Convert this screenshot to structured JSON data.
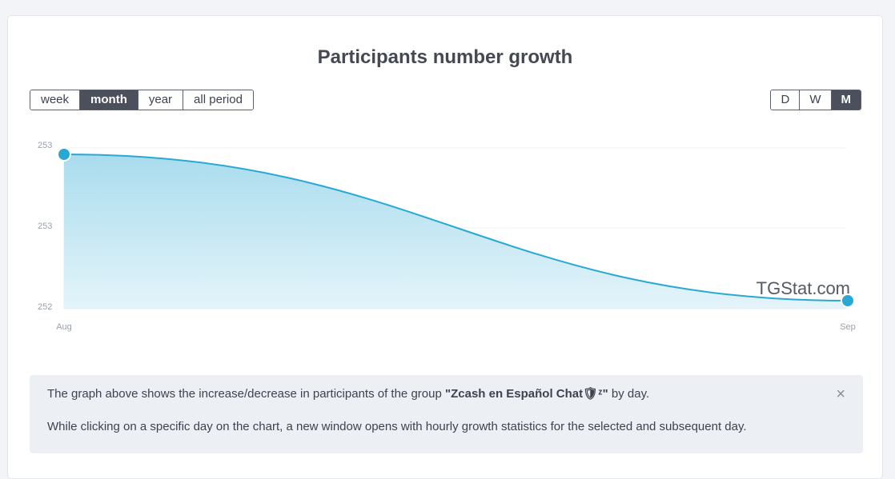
{
  "title": "Participants number growth",
  "period_buttons": [
    {
      "label": "week",
      "active": false
    },
    {
      "label": "month",
      "active": true
    },
    {
      "label": "year",
      "active": false
    },
    {
      "label": "all period",
      "active": false
    }
  ],
  "scale_buttons": [
    {
      "label": "D",
      "active": false
    },
    {
      "label": "W",
      "active": false
    },
    {
      "label": "M",
      "active": true
    }
  ],
  "chart_data": {
    "type": "area",
    "title": "Participants number growth",
    "x": [
      "Aug",
      "Sep"
    ],
    "series": [
      {
        "values": [
          253,
          252
        ]
      }
    ],
    "y_tick_labels": [
      "253",
      "253",
      "252"
    ],
    "ylim": [
      252,
      253
    ],
    "grid": true,
    "watermark": "TGStat.com",
    "colors": {
      "line": "#2aa8d4",
      "fill_top": "#a9dcee",
      "fill_bottom": "#e4f4fa"
    }
  },
  "info": {
    "line1_prefix": "The graph above shows the increase/decrease in participants of the group ",
    "group_name": "\"Zcash en Español Chat🛡ᶻ\"",
    "line1_suffix": " by day.",
    "line2": "While clicking on a specific day on the chart, a new window opens with hourly growth statistics for the selected and subsequent day.",
    "close_label": "×"
  }
}
